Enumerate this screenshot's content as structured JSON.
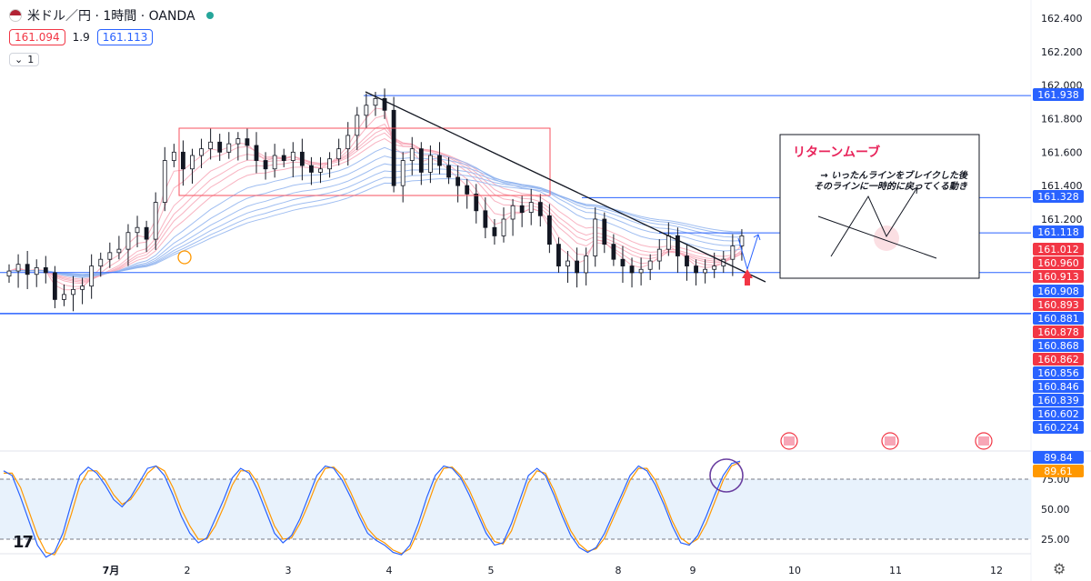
{
  "header": {
    "symbol_title": "米ドル／円 · 1時間 · OANDA",
    "sell_price": "161.094",
    "spread": "1.9",
    "buy_price": "161.113",
    "interval_value": "1",
    "logo": "17"
  },
  "colors": {
    "price_axis_red": "#f23645",
    "price_axis_blue": "#2962ff",
    "annotation_title": "#e8245b",
    "stoch_k": "#2962ff",
    "stoch_d": "#ff9800",
    "ribbon_red": "#f7a6b6",
    "ribbon_blue": "#8fb3ee",
    "highlight_circle_purple": "#6a3fa0",
    "highlight_circle_orange": "#ff9800"
  },
  "annotation": {
    "title": "リターンムーブ",
    "line1": "→ いったんラインをブレイクした後",
    "line2": "そのラインに一時的に戻ってくる動き"
  },
  "chart_data": [
    {
      "type": "candlestick",
      "x_ticks": [
        "7月",
        "2",
        "3",
        "4",
        "5",
        "8",
        "9",
        "10",
        "11",
        "12"
      ],
      "y_ticks": [
        "162.400",
        "162.200",
        "162.000",
        "161.800",
        "161.600",
        "161.400",
        "161.200"
      ],
      "ylim": [
        160.25,
        162.5
      ],
      "horizontal_lines": [
        161.938,
        161.328,
        161.118,
        160.881,
        160.636
      ],
      "trendline": {
        "from": [
          "4",
          161.96
        ],
        "to": [
          "9",
          161.05
        ]
      },
      "range_box": {
        "x": [
          "2",
          "5"
        ],
        "y": [
          161.36,
          161.74
        ]
      },
      "price_labels": [
        {
          "value": "161.938",
          "style": "blue"
        },
        {
          "value": "161.328",
          "style": "blue"
        },
        {
          "value": "161.118",
          "style": "blue"
        },
        {
          "value": "161.012",
          "style": "red"
        },
        {
          "value": "160.960",
          "style": "red"
        },
        {
          "value": "160.913",
          "style": "red"
        },
        {
          "value": "160.908",
          "style": "blue"
        },
        {
          "value": "160.893",
          "style": "red"
        },
        {
          "value": "160.881",
          "style": "blue"
        },
        {
          "value": "160.878",
          "style": "red"
        },
        {
          "value": "160.868",
          "style": "blue"
        },
        {
          "value": "160.862",
          "style": "red"
        },
        {
          "value": "160.856",
          "style": "blue"
        },
        {
          "value": "160.846",
          "style": "blue"
        },
        {
          "value": "160.839",
          "style": "blue"
        },
        {
          "value": "160.602",
          "style": "blue"
        },
        {
          "value": "160.224",
          "style": "blue"
        }
      ],
      "series": [
        {
          "name": "price",
          "x_positions": "hourly candles",
          "close": [
            160.89,
            160.93,
            160.87,
            160.91,
            160.88,
            160.72,
            160.75,
            160.78,
            160.8,
            160.92,
            160.96,
            161.0,
            161.02,
            161.12,
            161.15,
            161.08,
            161.3,
            161.55,
            161.6,
            161.5,
            161.58,
            161.62,
            161.66,
            161.6,
            161.65,
            161.68,
            161.64,
            161.55,
            161.5,
            161.58,
            161.55,
            161.6,
            161.52,
            161.48,
            161.5,
            161.56,
            161.62,
            161.7,
            161.82,
            161.88,
            161.92,
            161.85,
            161.4,
            161.55,
            161.62,
            161.48,
            161.58,
            161.52,
            161.45,
            161.4,
            161.35,
            161.25,
            161.15,
            161.1,
            161.2,
            161.28,
            161.24,
            161.3,
            161.22,
            161.05,
            160.92,
            160.95,
            160.88,
            160.98,
            161.2,
            161.05,
            160.96,
            160.92,
            160.88,
            160.9,
            160.95,
            161.02,
            161.1,
            160.98,
            160.92,
            160.88,
            160.9,
            160.92,
            160.96,
            161.04,
            161.1
          ]
        },
        {
          "name": "stochastic",
          "k_start": 80,
          "levels": [
            75,
            50,
            25
          ]
        }
      ],
      "stoch_y_ticks": [
        "75.00",
        "50.00",
        "25.00"
      ],
      "stoch_labels": [
        {
          "value": "89.84",
          "style": "blue"
        },
        {
          "value": "89.61",
          "style": "orange"
        }
      ],
      "stoch_k": [
        82,
        78,
        60,
        40,
        20,
        10,
        14,
        30,
        55,
        78,
        85,
        80,
        70,
        58,
        52,
        60,
        72,
        84,
        86,
        78,
        62,
        44,
        30,
        22,
        26,
        42,
        58,
        76,
        84,
        80,
        66,
        48,
        30,
        22,
        28,
        42,
        60,
        78,
        86,
        84,
        74,
        60,
        44,
        30,
        24,
        20,
        14,
        12,
        20,
        38,
        60,
        78,
        86,
        84,
        76,
        62,
        46,
        30,
        20,
        22,
        38,
        58,
        78,
        84,
        78,
        62,
        44,
        28,
        18,
        14,
        18,
        30,
        46,
        62,
        78,
        86,
        82,
        70,
        54,
        36,
        22,
        20,
        28,
        44,
        62,
        78,
        88,
        90
      ],
      "stoch_d": [
        80,
        80,
        68,
        48,
        28,
        14,
        12,
        24,
        46,
        70,
        82,
        82,
        74,
        62,
        54,
        58,
        68,
        80,
        86,
        82,
        68,
        50,
        36,
        25,
        25,
        36,
        52,
        70,
        82,
        82,
        72,
        54,
        36,
        25,
        26,
        38,
        54,
        72,
        84,
        85,
        78,
        64,
        48,
        34,
        26,
        22,
        16,
        13,
        17,
        32,
        52,
        72,
        84,
        85,
        78,
        66,
        50,
        34,
        23,
        21,
        32,
        52,
        72,
        82,
        80,
        66,
        48,
        32,
        21,
        15,
        17,
        26,
        42,
        58,
        74,
        84,
        84,
        74,
        58,
        40,
        26,
        21,
        25,
        38,
        56,
        74,
        86,
        89
      ]
    }
  ]
}
